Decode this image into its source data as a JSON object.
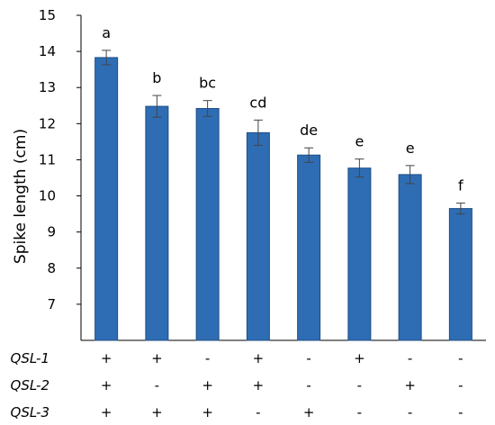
{
  "chart_data": {
    "type": "bar",
    "ylabel": "Spike length (cm)",
    "ylim": [
      6,
      15
    ],
    "yticks": [
      7,
      8,
      9,
      10,
      11,
      12,
      13,
      14,
      15
    ],
    "bar_color": "#2e6db4",
    "values": [
      13.83,
      12.48,
      12.42,
      11.75,
      11.13,
      10.77,
      10.59,
      9.65
    ],
    "errors": [
      0.2,
      0.3,
      0.22,
      0.35,
      0.2,
      0.25,
      0.25,
      0.15
    ],
    "significance": [
      "a",
      "b",
      "bc",
      "cd",
      "de",
      "e",
      "e",
      "f"
    ],
    "genotype_rows": [
      {
        "label": "QSL-1",
        "signs": [
          "+",
          "+",
          "-",
          "+",
          "-",
          "+",
          "-",
          "-"
        ]
      },
      {
        "label": "QSL-2",
        "signs": [
          "+",
          "-",
          "+",
          "+",
          "-",
          "-",
          "+",
          "-"
        ]
      },
      {
        "label": "QSL-3",
        "signs": [
          "+",
          "+",
          "+",
          "-",
          "+",
          "-",
          "-",
          "-"
        ]
      }
    ]
  }
}
